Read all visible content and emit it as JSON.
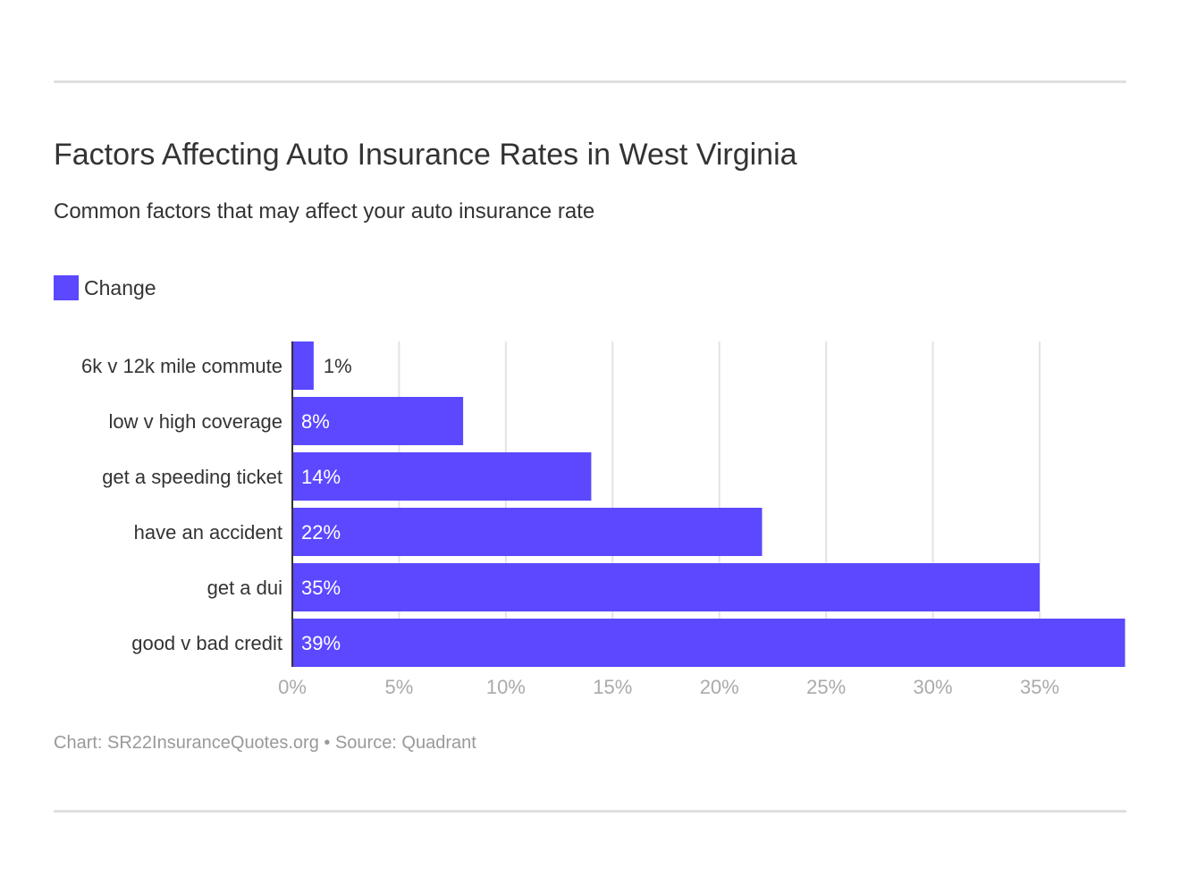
{
  "chart_data": {
    "type": "bar",
    "orientation": "horizontal",
    "title": "Factors Affecting Auto Insurance Rates in West Virginia",
    "subtitle": "Common factors that may affect your auto insurance rate",
    "categories": [
      "6k v 12k mile commute",
      "low v high coverage",
      "get a speeding ticket",
      "have an accident",
      "get a dui",
      "good v bad credit"
    ],
    "series": [
      {
        "name": "Change",
        "values": [
          1,
          8,
          14,
          22,
          35,
          39
        ],
        "color": "#5b48ff"
      }
    ],
    "data_labels": [
      "1%",
      "8%",
      "14%",
      "22%",
      "35%",
      "39%"
    ],
    "xlim": [
      0,
      39
    ],
    "xticks": [
      0,
      5,
      10,
      15,
      20,
      25,
      30,
      35
    ],
    "xtick_labels": [
      "0%",
      "5%",
      "10%",
      "15%",
      "20%",
      "25%",
      "30%",
      "35%"
    ],
    "grid": true,
    "legend": "top-left",
    "footer": "Chart: SR22InsuranceQuotes.org • Source: Quadrant"
  }
}
